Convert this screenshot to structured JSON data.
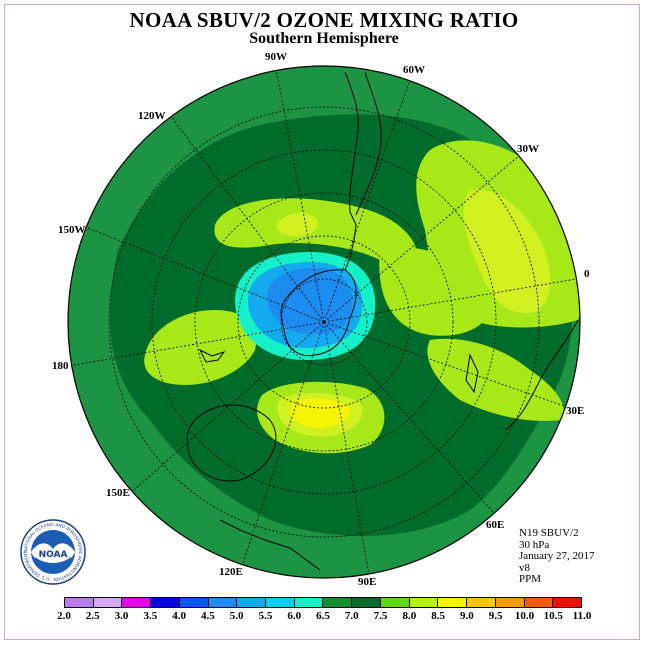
{
  "title": "NOAA SBUV/2 OZONE MIXING RATIO",
  "subtitle": "Southern Hemisphere",
  "longitude_labels": {
    "lon_90w": "90W",
    "lon_60w": "60W",
    "lon_120w": "120W",
    "lon_30w": "30W",
    "lon_150w": "150W",
    "lon_0": "0",
    "lon_180": "180",
    "lon_30e": "30E",
    "lon_150e": "150E",
    "lon_60e": "60E",
    "lon_120e": "120E",
    "lon_90e": "90E"
  },
  "info": {
    "satellite": "N19 SBUV/2",
    "pressure_level": "30 hPa",
    "date": "January 27, 2017",
    "version": "v8",
    "units": "PPM"
  },
  "colorbar": {
    "ticks": [
      "2.0",
      "2.5",
      "3.0",
      "3.5",
      "4.0",
      "4.5",
      "5.0",
      "5.5",
      "6.0",
      "6.5",
      "7.0",
      "7.5",
      "8.0",
      "8.5",
      "9.0",
      "9.5",
      "10.0",
      "10.5",
      "11.0"
    ],
    "colors": [
      "#b87cf0",
      "#d8a8f8",
      "#e800e8",
      "#0000e0",
      "#0058f0",
      "#1c8cf0",
      "#14aaf0",
      "#00d0f8",
      "#14f0c8",
      "#109030",
      "#006c2c",
      "#60d818",
      "#b4f010",
      "#f4f400",
      "#f4c800",
      "#f49c00",
      "#f45c00",
      "#f01000",
      "#88603c"
    ]
  },
  "map_colors": {
    "background_green": "#1c9444",
    "dark_green": "#006c2c",
    "lime": "#a8e818",
    "yellow_green": "#d0f020",
    "yellow": "#f4f400",
    "aqua": "#14f0c8",
    "cyan": "#14aaf0",
    "blue": "#1c8cf0"
  },
  "logo": {
    "name": "NOAA",
    "ring_text": "NATIONAL OCEANIC AND ATMOSPHERIC ADMINISTRATION · U.S. DEPARTMENT OF COMMERCE"
  }
}
